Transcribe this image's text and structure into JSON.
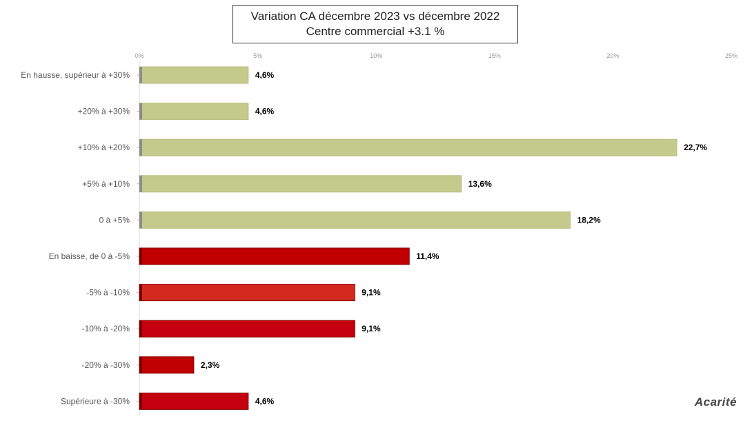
{
  "title": {
    "line1": "Variation CA décembre 2023 vs décembre 2022",
    "line2": "Centre commercial  +3.1 %"
  },
  "logo": "Acarité",
  "chart_data": {
    "type": "bar",
    "orientation": "horizontal",
    "categories": [
      "En hausse, supérieur à +30%",
      "+20% à +30%",
      "+10% à +20%",
      "+5% à +10%",
      "0 à +5%",
      "En baisse, de 0 à -5%",
      "-5% à -10%",
      "-10% à -20%",
      "-20% à -30%",
      "Supérieure à -30%"
    ],
    "values": [
      4.6,
      4.6,
      22.7,
      13.6,
      18.2,
      11.4,
      9.1,
      9.1,
      2.3,
      4.6
    ],
    "value_labels": [
      "4,6%",
      "4,6%",
      "22,7%",
      "13,6%",
      "18,2%",
      "11,4%",
      "9,1%",
      "9,1%",
      "2,3%",
      "4,6%"
    ],
    "bar_colors": [
      "#c4c98c",
      "#c4c98c",
      "#c4c98c",
      "#c4c98c",
      "#c4c98c",
      "#c00000",
      "#d42a1e",
      "#c40010",
      "#c00000",
      "#c40010"
    ],
    "xlim": [
      0,
      25
    ],
    "xticks": [
      0,
      5,
      10,
      15,
      20,
      25
    ],
    "xtick_labels": [
      "0%",
      "5%",
      "10%",
      "15%",
      "20%",
      "25%"
    ],
    "axis_position": "top",
    "grid": false,
    "legend": "none"
  }
}
